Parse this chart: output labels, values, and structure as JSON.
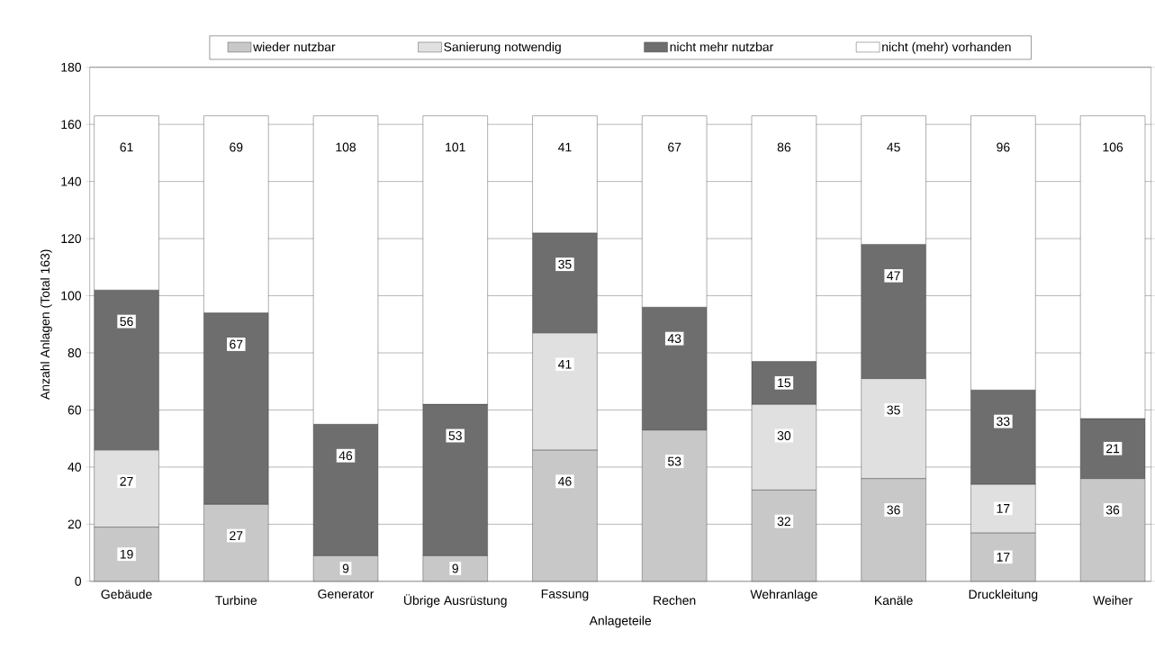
{
  "chart_data": {
    "type": "bar",
    "stacked": true,
    "xlabel": "Anlageteile",
    "ylabel": "Anzahl Anlagen (Total 163)",
    "categories": [
      "Gebäude",
      "Turbine",
      "Generator",
      "Übrige Ausrüstung",
      "Fassung",
      "Rechen",
      "Wehranlage",
      "Kanäle",
      "Druckleitung",
      "Weiher"
    ],
    "series": [
      {
        "name": "wieder nutzbar",
        "color": "#c8c8c8",
        "values": [
          19,
          27,
          9,
          9,
          46,
          53,
          32,
          36,
          17,
          36
        ]
      },
      {
        "name": "Sanierung notwendig",
        "color": "#e0e0e0",
        "values": [
          27,
          null,
          null,
          null,
          41,
          null,
          30,
          35,
          17,
          null
        ]
      },
      {
        "name": "nicht mehr nutzbar",
        "color": "#6e6e6e",
        "values": [
          56,
          67,
          46,
          53,
          35,
          43,
          15,
          47,
          33,
          21
        ]
      },
      {
        "name": "nicht (mehr) vorhanden",
        "color": "#ffffff",
        "values": [
          61,
          69,
          108,
          101,
          41,
          67,
          86,
          45,
          96,
          106
        ]
      }
    ],
    "ylim": [
      0,
      180
    ],
    "yticks": [
      0,
      20,
      40,
      60,
      80,
      100,
      120,
      140,
      160,
      180
    ],
    "grid": "y",
    "legend": "top",
    "data_labels": true
  }
}
